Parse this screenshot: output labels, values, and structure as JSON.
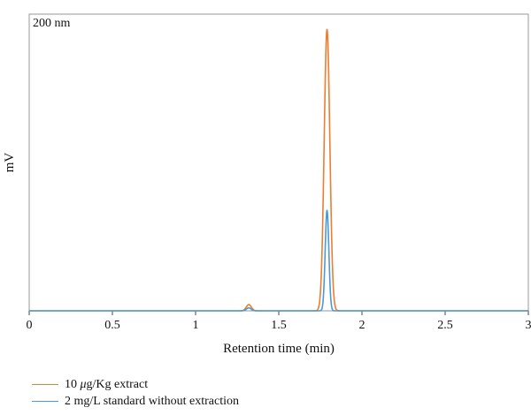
{
  "chart_data": {
    "type": "line",
    "annotation": "200 nm",
    "xlabel": "Retention time (min)",
    "ylabel": "mV",
    "xlim": [
      0,
      3
    ],
    "ylim": [
      0,
      1
    ],
    "x_ticks": [
      0,
      0.5,
      1,
      1.5,
      2,
      2.5,
      3
    ],
    "x_tick_labels": [
      "0",
      "0.5",
      "1",
      "1.5",
      "2",
      "2.5",
      "3"
    ],
    "grid": false,
    "legend_position": "bottom-left",
    "series": [
      {
        "name": "10 μg/Kg extract",
        "color": "#ED7D31",
        "peaks": [
          {
            "rt": 1.32,
            "height": 0.021,
            "width": 0.015
          },
          {
            "rt": 1.79,
            "height": 0.95,
            "width": 0.017
          }
        ]
      },
      {
        "name": "2 mg/L standard without extraction",
        "color": "#4A9BD4",
        "peaks": [
          {
            "rt": 1.32,
            "height": 0.01,
            "width": 0.014
          },
          {
            "rt": 1.79,
            "height": 0.34,
            "width": 0.011
          }
        ]
      }
    ]
  },
  "legend": {
    "items": [
      {
        "label_prefix": "10 ",
        "label_mu": "μ",
        "label_rest": "g/Kg extract",
        "color": "#ED7D31"
      },
      {
        "label": "2 mg/L standard without extraction",
        "color": "#4A9BD4"
      }
    ]
  }
}
